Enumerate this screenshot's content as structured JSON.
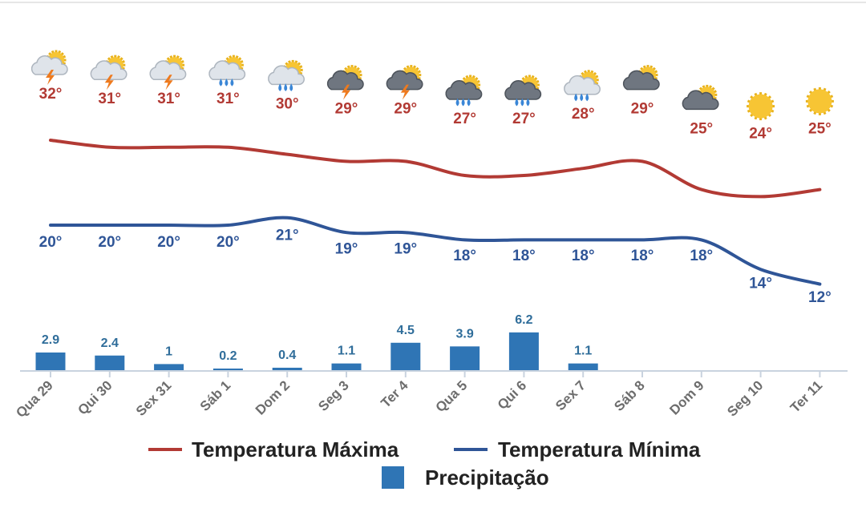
{
  "chart_data": {
    "type": "line",
    "categories": [
      "Qua 29",
      "Qui 30",
      "Sex 31",
      "Sáb 1",
      "Dom 2",
      "Seg 3",
      "Ter 4",
      "Qua 5",
      "Qui 6",
      "Sex 7",
      "Sáb 8",
      "Dom 9",
      "Seg 10",
      "Ter 11"
    ],
    "series": [
      {
        "name": "Temperatura Máxima",
        "type": "line",
        "color": "#b23a34",
        "values": [
          32,
          31,
          31,
          31,
          30,
          29,
          29,
          27,
          27,
          28,
          29,
          25,
          24,
          25
        ]
      },
      {
        "name": "Temperatura Mínima",
        "type": "line",
        "color": "#2f5597",
        "values": [
          20,
          20,
          20,
          20,
          21,
          19,
          19,
          18,
          18,
          18,
          18,
          18,
          14,
          12
        ]
      },
      {
        "name": "Precipitação",
        "type": "bar",
        "color": "#2f75b5",
        "values": [
          2.9,
          2.4,
          1,
          0.2,
          0.4,
          1.1,
          4.5,
          3.9,
          6.2,
          1.1,
          null,
          null,
          null,
          null
        ]
      }
    ],
    "max_labels": [
      "32°",
      "31°",
      "31°",
      "31°",
      "30°",
      "29°",
      "29°",
      "27°",
      "27°",
      "28°",
      "29°",
      "25°",
      "24°",
      "25°"
    ],
    "min_labels": [
      "20°",
      "20°",
      "20°",
      "20°",
      "21°",
      "19°",
      "19°",
      "18°",
      "18°",
      "18°",
      "18°",
      "18°",
      "14°",
      "12°"
    ],
    "precip_labels": [
      "2.9",
      "2.4",
      "1",
      "0.2",
      "0.4",
      "1.1",
      "4.5",
      "3.9",
      "6.2",
      "1.1",
      "",
      "",
      "",
      ""
    ],
    "icons": [
      "sun-cloud-thunder-icon",
      "sun-cloud-thunder-icon",
      "sun-cloud-thunder-icon",
      "sun-cloud-rain-icon",
      "sun-cloud-rain-icon",
      "sun-darkcloud-thunder-icon",
      "sun-darkcloud-thunder-icon",
      "sun-darkcloud-rain-icon",
      "sun-darkcloud-rain-icon",
      "sun-cloud-rain-icon",
      "sun-darkcloud-icon",
      "sun-darkcloud-icon",
      "sun-icon",
      "sun-icon"
    ],
    "legend": [
      "Temperatura Máxima",
      "Temperatura Mínima",
      "Precipitação"
    ],
    "legend_position": "bottom-center",
    "grid": false
  }
}
